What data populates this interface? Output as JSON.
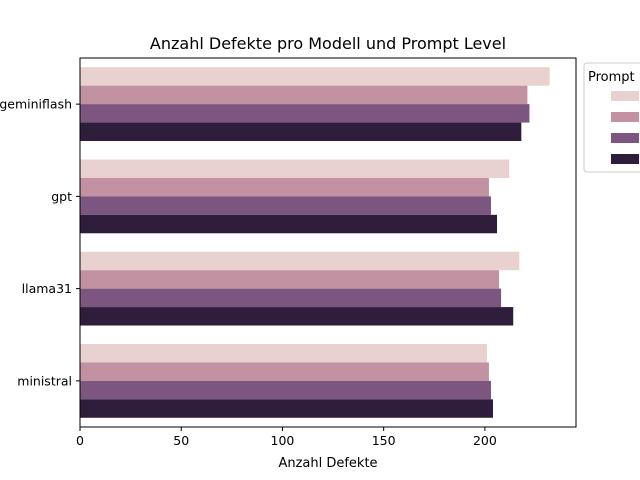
{
  "chart_data": {
    "type": "bar",
    "orientation": "horizontal",
    "title": "Anzahl Defekte pro Modell und Prompt Level",
    "xlabel": "Anzahl Defekte",
    "ylabel": "",
    "xlim": [
      0,
      245
    ],
    "xticks": [
      0,
      50,
      100,
      150,
      200
    ],
    "categories": [
      "geminiflash",
      "gpt",
      "llama31",
      "ministral"
    ],
    "legend": {
      "title": "Prompt",
      "placement": "outside-right"
    },
    "series": [
      {
        "color": "#e9d1cf",
        "values": [
          232,
          212,
          217,
          201
        ]
      },
      {
        "color": "#c292a2",
        "values": [
          221,
          202,
          207,
          202
        ]
      },
      {
        "color": "#7c5680",
        "values": [
          222,
          203,
          208,
          203
        ]
      },
      {
        "color": "#2e1e3b",
        "values": [
          218,
          206,
          214,
          204
        ]
      }
    ],
    "grid": false
  }
}
